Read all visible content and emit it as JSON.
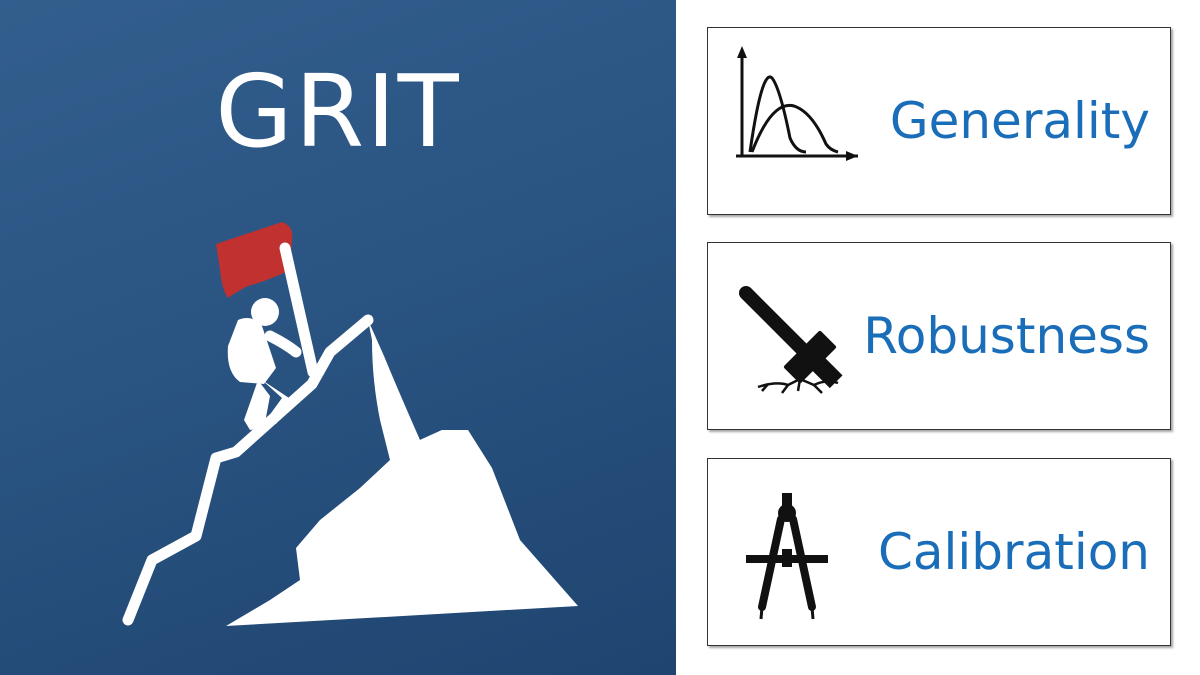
{
  "logo": {
    "title": "GRIT",
    "icon": "climber-flag-mountain-icon",
    "colors": {
      "background": "#2a5482",
      "flag": "#c0312f",
      "figure": "#ffffff"
    }
  },
  "cards": [
    {
      "label": "Generality",
      "icon": "distribution-curves-icon"
    },
    {
      "label": "Robustness",
      "icon": "hammer-icon"
    },
    {
      "label": "Calibration",
      "icon": "drawing-compass-icon"
    }
  ],
  "colors": {
    "label": "#1a6db8",
    "icon": "#111111"
  }
}
